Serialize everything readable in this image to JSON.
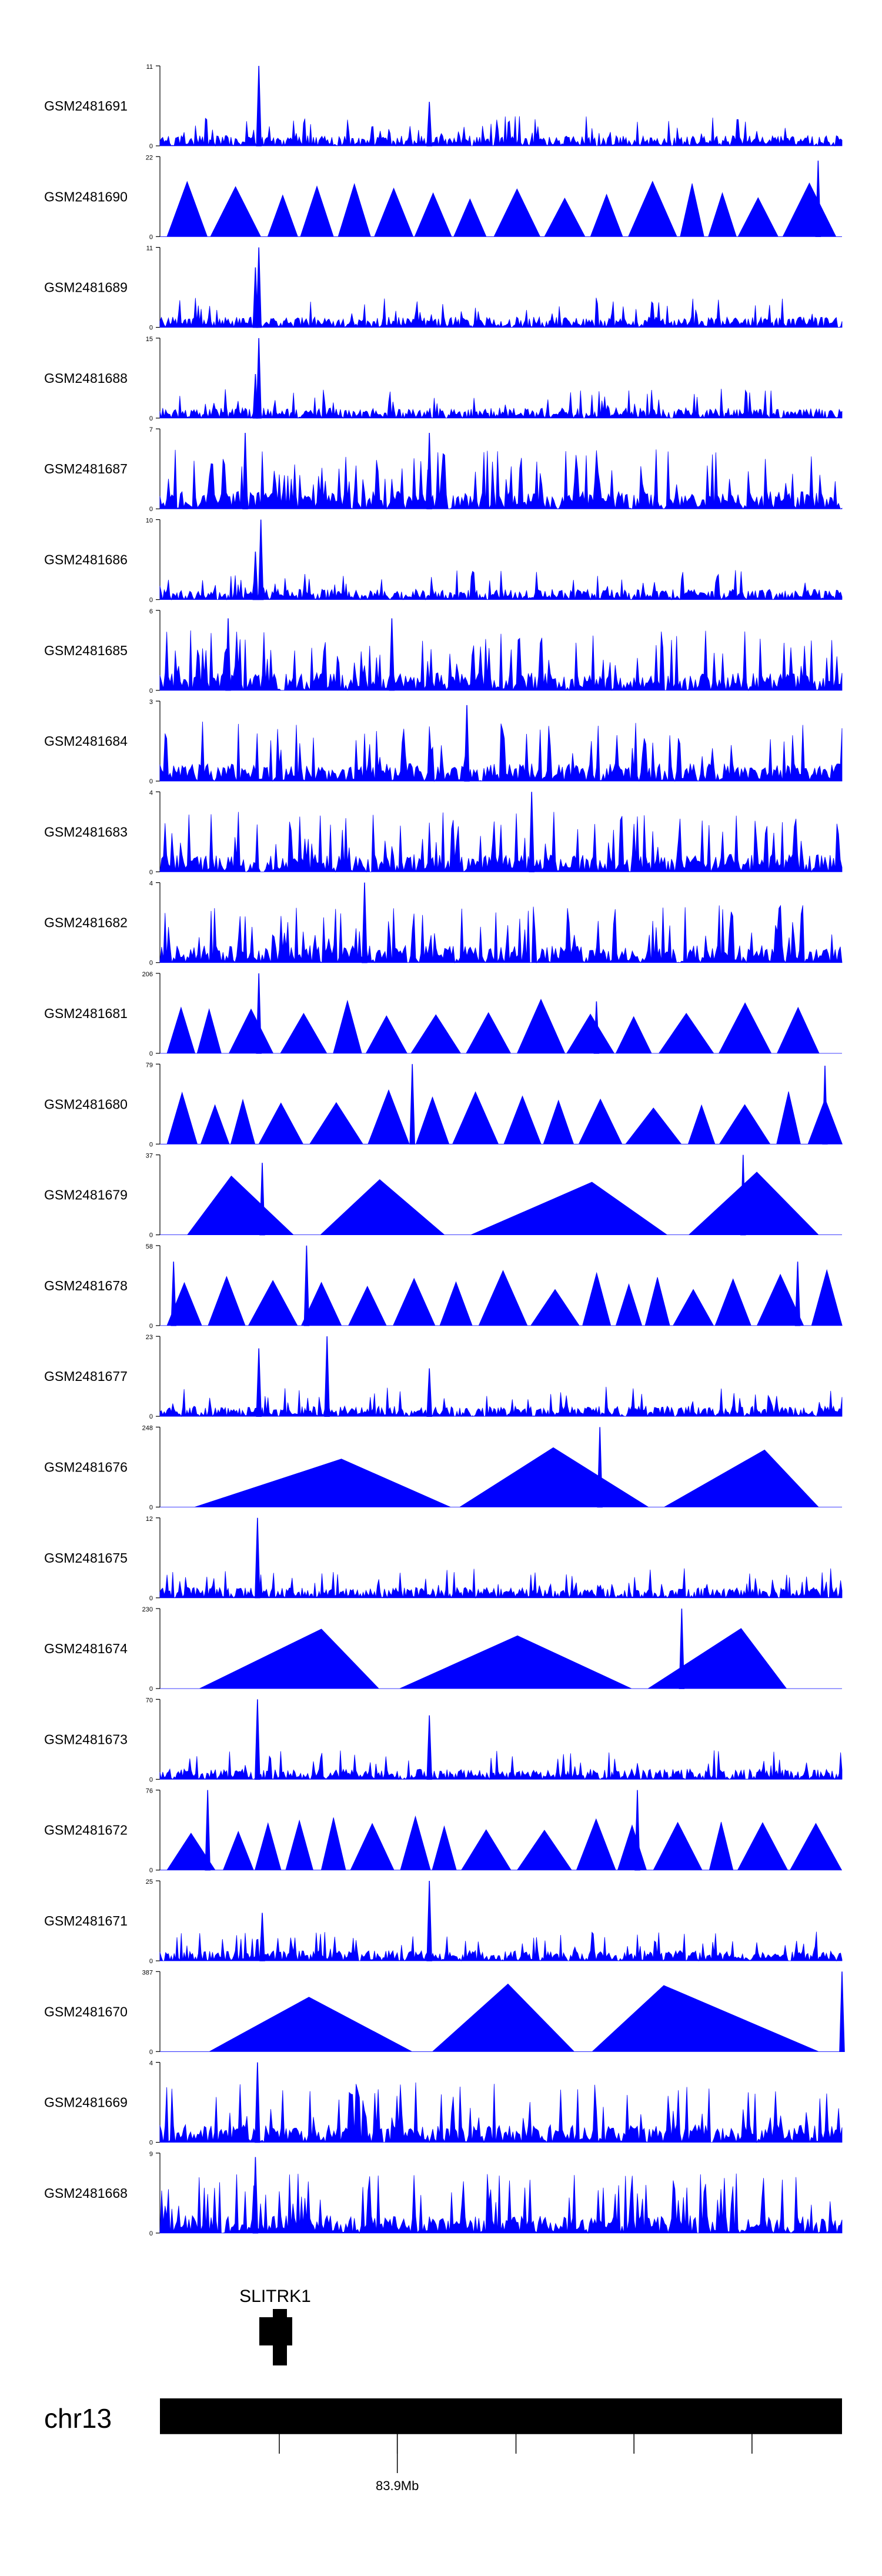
{
  "chart_data": {
    "type": "area",
    "title": "",
    "fill_color": "#0000ff",
    "axis_color": "#000000",
    "tracks": [
      {
        "name": "GSM2481691",
        "ymax": "11",
        "ymin": "0",
        "style": "dense",
        "peaks": [
          [
            0.145,
            1.0
          ],
          [
            0.395,
            0.55
          ]
        ]
      },
      {
        "name": "GSM2481690",
        "ymax": "22",
        "ymin": "0",
        "style": "triangles",
        "peaks": [
          [
            0.965,
            0.95
          ]
        ]
      },
      {
        "name": "GSM2481689",
        "ymax": "11",
        "ymin": "0",
        "style": "dense",
        "peaks": [
          [
            0.145,
            1.0
          ],
          [
            0.14,
            0.75
          ]
        ]
      },
      {
        "name": "GSM2481688",
        "ymax": "15",
        "ymin": "0",
        "style": "dense",
        "peaks": [
          [
            0.145,
            1.0
          ],
          [
            0.14,
            0.55
          ]
        ]
      },
      {
        "name": "GSM2481687",
        "ymax": "7",
        "ymin": "0",
        "style": "spiky",
        "peaks": [
          [
            0.125,
            0.95
          ],
          [
            0.395,
            0.95
          ]
        ]
      },
      {
        "name": "GSM2481686",
        "ymax": "10",
        "ymin": "0",
        "style": "dense",
        "peaks": [
          [
            0.148,
            1.0
          ],
          [
            0.14,
            0.6
          ]
        ]
      },
      {
        "name": "GSM2481685",
        "ymax": "6",
        "ymin": "0",
        "style": "spiky",
        "peaks": [
          [
            0.1,
            0.9
          ],
          [
            0.34,
            0.9
          ]
        ]
      },
      {
        "name": "GSM2481684",
        "ymax": "3",
        "ymin": "0",
        "style": "spiky",
        "peaks": [
          [
            0.45,
            0.95
          ]
        ]
      },
      {
        "name": "GSM2481683",
        "ymax": "4",
        "ymin": "0",
        "style": "spiky",
        "peaks": [
          [
            0.545,
            1.0
          ]
        ]
      },
      {
        "name": "GSM2481682",
        "ymax": "4",
        "ymin": "0",
        "style": "spiky",
        "peaks": [
          [
            0.3,
            1.0
          ]
        ]
      },
      {
        "name": "GSM2481681",
        "ymax": "206",
        "ymin": "0",
        "style": "triangles",
        "peaks": [
          [
            0.145,
            1.0
          ],
          [
            0.64,
            0.65
          ]
        ]
      },
      {
        "name": "GSM2481680",
        "ymax": "79",
        "ymin": "0",
        "style": "triangles",
        "peaks": [
          [
            0.37,
            1.0
          ],
          [
            0.975,
            0.98
          ]
        ]
      },
      {
        "name": "GSM2481679",
        "ymax": "37",
        "ymin": "0",
        "style": "big",
        "peaks": [
          [
            0.15,
            0.9
          ],
          [
            0.855,
            1.0
          ]
        ]
      },
      {
        "name": "GSM2481678",
        "ymax": "58",
        "ymin": "0",
        "style": "triangles",
        "peaks": [
          [
            0.215,
            1.0
          ],
          [
            0.02,
            0.8
          ],
          [
            0.935,
            0.8
          ]
        ]
      },
      {
        "name": "GSM2481677",
        "ymax": "23",
        "ymin": "0",
        "style": "dense",
        "peaks": [
          [
            0.145,
            0.85
          ],
          [
            0.245,
            1.0
          ],
          [
            0.395,
            0.6
          ]
        ]
      },
      {
        "name": "GSM2481676",
        "ymax": "248",
        "ymin": "0",
        "style": "big",
        "peaks": [
          [
            0.645,
            1.0
          ]
        ]
      },
      {
        "name": "GSM2481675",
        "ymax": "12",
        "ymin": "0",
        "style": "dense",
        "peaks": [
          [
            0.143,
            1.0
          ]
        ]
      },
      {
        "name": "GSM2481674",
        "ymax": "230",
        "ymin": "0",
        "style": "big",
        "peaks": [
          [
            0.765,
            1.0
          ]
        ]
      },
      {
        "name": "GSM2481673",
        "ymax": "70",
        "ymin": "0",
        "style": "dense",
        "peaks": [
          [
            0.143,
            1.0
          ],
          [
            0.395,
            0.8
          ]
        ]
      },
      {
        "name": "GSM2481672",
        "ymax": "76",
        "ymin": "0",
        "style": "triangles",
        "peaks": [
          [
            0.07,
            1.0
          ],
          [
            0.7,
            1.0
          ]
        ]
      },
      {
        "name": "GSM2481671",
        "ymax": "25",
        "ymin": "0",
        "style": "dense",
        "peaks": [
          [
            0.395,
            1.0
          ],
          [
            0.15,
            0.6
          ]
        ]
      },
      {
        "name": "GSM2481670",
        "ymax": "387",
        "ymin": "0",
        "style": "big",
        "peaks": [
          [
            1.0,
            1.0
          ]
        ]
      },
      {
        "name": "GSM2481669",
        "ymax": "4",
        "ymin": "0",
        "style": "spiky",
        "peaks": [
          [
            0.143,
            1.0
          ]
        ]
      },
      {
        "name": "GSM2481668",
        "ymax": "9",
        "ymin": "0",
        "style": "spiky",
        "peaks": [
          [
            0.14,
            0.95
          ]
        ]
      }
    ],
    "gene": {
      "label": "SLITRK1",
      "position": 0.175
    },
    "chromosome": {
      "label": "chr13",
      "tick_positions": [
        0.175,
        0.348,
        0.522,
        0.695,
        0.868
      ],
      "tick_labels": [
        {
          "position": 0.348,
          "label": "83.9Mb"
        }
      ]
    }
  }
}
